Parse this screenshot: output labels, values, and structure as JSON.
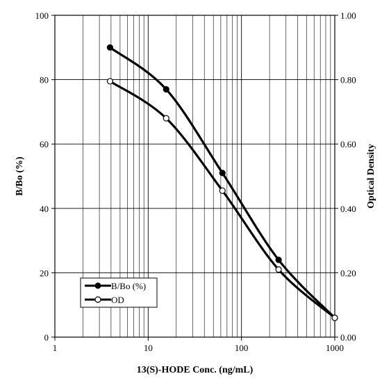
{
  "chart_data": {
    "type": "line",
    "title": "",
    "xlabel": "13(S)-HODE Conc. (ng/mL)",
    "ylabel": "B/Bo (%)",
    "y2label": "Optical Density",
    "x_scale": "log",
    "xlim": [
      1,
      1000
    ],
    "ylim": [
      0,
      100
    ],
    "y2lim": [
      0.0,
      1.0
    ],
    "grid": true,
    "x_ticks": [
      {
        "value": 1,
        "label": "1"
      },
      {
        "value": 10,
        "label": "10"
      },
      {
        "value": 100,
        "label": "100"
      },
      {
        "value": 1000,
        "label": "1000"
      }
    ],
    "y_ticks": [
      {
        "value": 0,
        "label": "0"
      },
      {
        "value": 20,
        "label": "20"
      },
      {
        "value": 40,
        "label": "40"
      },
      {
        "value": 60,
        "label": "60"
      },
      {
        "value": 80,
        "label": "80"
      },
      {
        "value": 100,
        "label": "100"
      }
    ],
    "y2_ticks": [
      {
        "value": 0.0,
        "label": "0.00"
      },
      {
        "value": 0.2,
        "label": "0.20"
      },
      {
        "value": 0.4,
        "label": "0.40"
      },
      {
        "value": 0.6,
        "label": "0.60"
      },
      {
        "value": 0.8,
        "label": "0.80"
      },
      {
        "value": 1.0,
        "label": "1.00"
      }
    ],
    "legend_position": "bottom-left",
    "series": [
      {
        "name": "B/Bo (%)",
        "axis": "left",
        "marker": "filled-circle",
        "color": "#000000",
        "x": [
          3.9,
          15.6,
          62.5,
          250,
          1000
        ],
        "y": [
          90,
          77,
          51,
          24,
          6
        ]
      },
      {
        "name": "OD",
        "axis": "right",
        "marker": "open-circle",
        "color": "#000000",
        "x": [
          3.9,
          15.6,
          62.5,
          250,
          1000
        ],
        "y": [
          0.795,
          0.68,
          0.455,
          0.21,
          0.06
        ]
      }
    ]
  }
}
